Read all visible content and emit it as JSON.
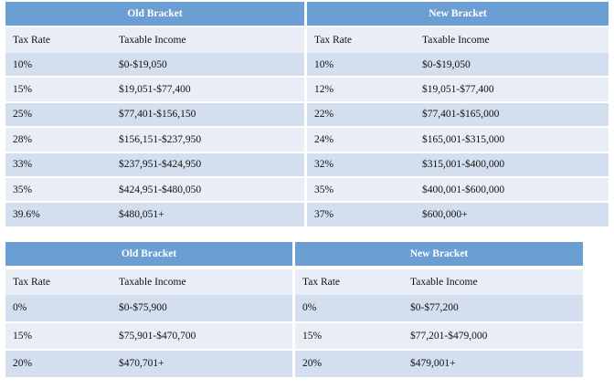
{
  "tables": [
    {
      "old_title": "Old Bracket",
      "new_title": "New Bracket",
      "headers": [
        "Tax Rate",
        "Taxable Income",
        "Tax Rate",
        "Taxable Income"
      ],
      "rows": [
        [
          "10%",
          "$0-$19,050",
          "10%",
          "$0-$19,050"
        ],
        [
          "15%",
          "$19,051-$77,400",
          "12%",
          "$19,051-$77,400"
        ],
        [
          "25%",
          "$77,401-$156,150",
          "22%",
          "$77,401-$165,000"
        ],
        [
          "28%",
          "$156,151-$237,950",
          "24%",
          "$165,001-$315,000"
        ],
        [
          "33%",
          "$237,951-$424,950",
          "32%",
          "$315,001-$400,000"
        ],
        [
          "35%",
          "$424,951-$480,050",
          "35%",
          "$400,001-$600,000"
        ],
        [
          "39.6%",
          "$480,051+",
          "37%",
          "$600,000+"
        ]
      ]
    },
    {
      "old_title": "Old Bracket",
      "new_title": "New Bracket",
      "headers": [
        "Tax Rate",
        "Taxable Income",
        "Tax Rate",
        "Taxable Income"
      ],
      "rows": [
        [
          "0%",
          "$0-$75,900",
          "0%",
          "$0-$77,200"
        ],
        [
          "15%",
          "$75,901-$470,700",
          "15%",
          "$77,201-$479,000"
        ],
        [
          "20%",
          "$470,701+",
          "20%",
          "$479,001+"
        ]
      ]
    }
  ],
  "colors": {
    "header_bg": "#6b9fd4",
    "row_light": "#e9eef6",
    "row_dark": "#d3dfee"
  }
}
